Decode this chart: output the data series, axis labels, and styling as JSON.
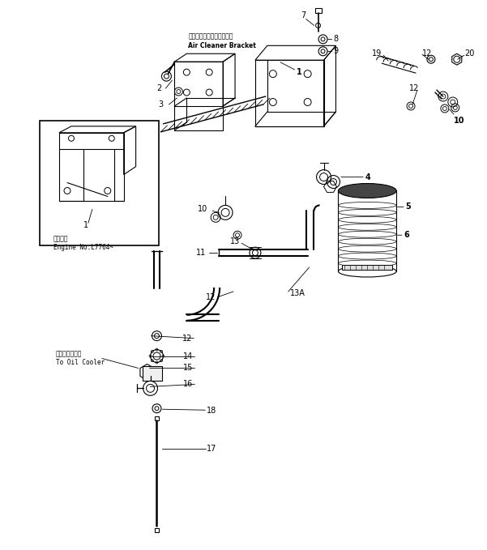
{
  "bg_color": "#ffffff",
  "line_color": "#000000",
  "fig_width": 6.01,
  "fig_height": 6.79,
  "dpi": 100,
  "labels": {
    "air_cleaner_bracket_jp": "エアークリーナブラケット",
    "air_cleaner_bracket_en": "Air Cleaner Bracket",
    "inset_text_jp": "適用番号",
    "inset_text_en": "Engine No.L7764~",
    "oil_cooler_jp": "オイルクーラヘ",
    "oil_cooler_en": "To Oil Cooler"
  }
}
